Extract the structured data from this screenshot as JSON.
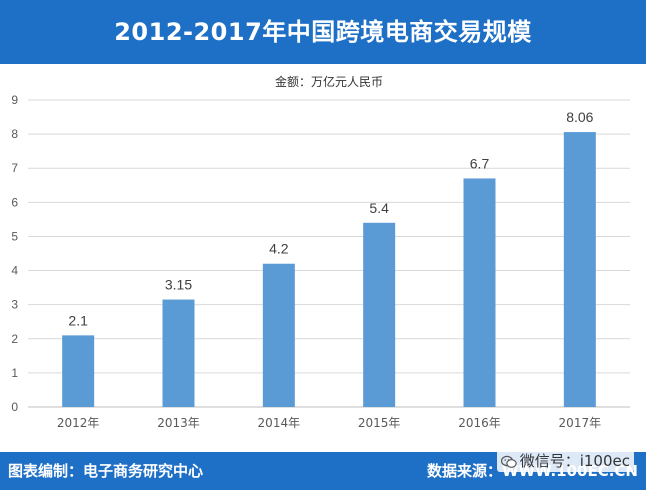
{
  "header": {
    "title": "2012-2017年中国跨境电商交易规模"
  },
  "footer": {
    "credit": "图表编制：电子商务研究中心",
    "source": "数据来源：WWW.100EC.CN"
  },
  "watermark": {
    "text": "微信号：i100ec",
    "icon": "wechat-icon"
  },
  "colors": {
    "brand": "#1e6fc6",
    "bar": "#5b9bd5",
    "grid": "#d9d9d9",
    "text": "#595959"
  },
  "chart_data": {
    "type": "bar",
    "title": "2012-2017年中国跨境电商交易规模",
    "unit_label": "金额：万亿元人民币",
    "categories": [
      "2012年",
      "2013年",
      "2014年",
      "2015年",
      "2016年",
      "2017年"
    ],
    "values": [
      2.1,
      3.15,
      4.2,
      5.4,
      6.7,
      8.06
    ],
    "value_labels": [
      "2.1",
      "3.15",
      "4.2",
      "5.4",
      "6.7",
      "8.06"
    ],
    "yticks": [
      "0",
      "1",
      "2",
      "3",
      "4",
      "5",
      "6",
      "7",
      "8",
      "9"
    ],
    "ylim": [
      0,
      9
    ],
    "grid": true,
    "xlabel": "",
    "ylabel": ""
  }
}
